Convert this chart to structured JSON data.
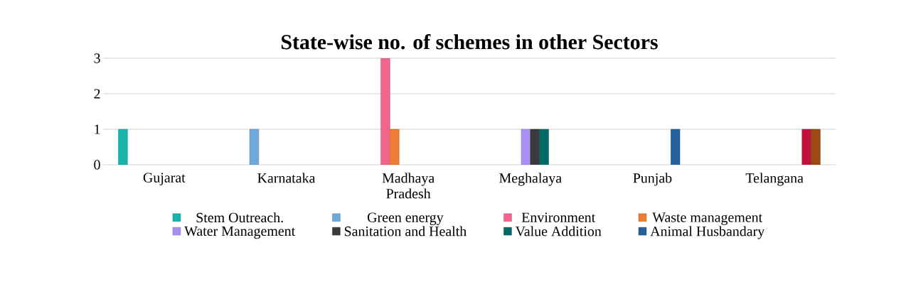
{
  "chart_data": {
    "type": "bar",
    "title": "State-wise no. of schemes in other Sectors",
    "categories": [
      "Gujarat",
      "Karnataka",
      "Madhaya Pradesh",
      "Meghalaya",
      "Punjab",
      "Telangana"
    ],
    "series": [
      {
        "name": "Stem Outreach.",
        "color": "#17b3ac",
        "values": [
          1,
          null,
          null,
          null,
          null,
          null
        ]
      },
      {
        "name": "Green energy",
        "color": "#6fa8dc",
        "values": [
          null,
          1,
          null,
          null,
          null,
          null
        ]
      },
      {
        "name": "Environment",
        "color": "#f2648c",
        "values": [
          null,
          null,
          3,
          null,
          null,
          null
        ]
      },
      {
        "name": "Waste management",
        "color": "#ed7d31",
        "values": [
          null,
          null,
          1,
          null,
          null,
          null
        ]
      },
      {
        "name": "Water Management",
        "color": "#a98ff0",
        "values": [
          null,
          null,
          null,
          1,
          null,
          null
        ]
      },
      {
        "name": "Sanitation and Health",
        "color": "#3a3a3a",
        "values": [
          null,
          null,
          null,
          1,
          null,
          null
        ]
      },
      {
        "name": "Value Addition",
        "color": "#006b66",
        "values": [
          null,
          null,
          null,
          1,
          null,
          null
        ]
      },
      {
        "name": "Animal Husbandary",
        "color": "#23619c",
        "values": [
          null,
          null,
          null,
          null,
          1,
          null
        ]
      },
      {
        "color": "#c0113c",
        "values": [
          null,
          null,
          null,
          null,
          null,
          1
        ]
      },
      {
        "color": "#9a4a12",
        "values": [
          null,
          null,
          null,
          null,
          null,
          1
        ]
      }
    ],
    "ylim": [
      0,
      3
    ],
    "yticks": [
      0,
      1,
      2,
      3
    ],
    "grid": "y",
    "legend": "bottom"
  }
}
